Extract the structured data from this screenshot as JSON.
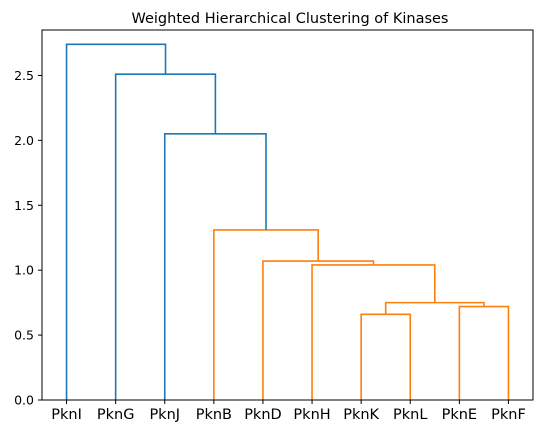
{
  "chart_data": {
    "type": "dendrogram",
    "title": "Weighted Hierarchical Clustering of Kinases",
    "xlabel": "",
    "ylabel": "",
    "ylim": [
      0,
      2.85
    ],
    "y_ticks": [
      0.0,
      0.5,
      1.0,
      1.5,
      2.0,
      2.5
    ],
    "y_tick_labels": [
      "0.0",
      "0.5",
      "1.0",
      "1.5",
      "2.0",
      "2.5"
    ],
    "leaves": [
      "PknI",
      "PknG",
      "PknJ",
      "PknB",
      "PknD",
      "PknH",
      "PknK",
      "PknL",
      "PknE",
      "PknF"
    ],
    "merges": [
      {
        "left": "PknK",
        "right": "PknL",
        "height": 0.66,
        "color": "#ff7f0e"
      },
      {
        "left": "PknE",
        "right": "PknF",
        "height": 0.72,
        "color": "#ff7f0e"
      },
      {
        "left": "PknK+PknL",
        "right": "PknE+PknF",
        "height": 0.75,
        "color": "#ff7f0e"
      },
      {
        "left": "PknH",
        "right": "PknK+PknL+PknE+PknF",
        "height": 1.04,
        "color": "#ff7f0e"
      },
      {
        "left": "PknD",
        "right": "PknH+PknK+PknL+PknE+PknF",
        "height": 1.07,
        "color": "#ff7f0e"
      },
      {
        "left": "PknB",
        "right": "PknD+PknH+PknK+PknL+PknE+PknF",
        "height": 1.31,
        "color": "#ff7f0e"
      },
      {
        "left": "PknJ",
        "right": "PknB+PknD+PknH+PknK+PknL+PknE+PknF",
        "height": 2.05,
        "color": "#1f77b4"
      },
      {
        "left": "PknG",
        "right": "PknJ+PknB+PknD+PknH+PknK+PknL+PknE+PknF",
        "height": 2.51,
        "color": "#1f77b4"
      },
      {
        "left": "PknI",
        "right": "PknG+PknJ+PknB+PknD+PknH+PknK+PknL+PknE+PknF",
        "height": 2.74,
        "color": "#1f77b4"
      }
    ],
    "colors": {
      "cluster_1": "#ff7f0e",
      "above_threshold": "#1f77b4"
    },
    "grid": false,
    "legend": "none"
  }
}
